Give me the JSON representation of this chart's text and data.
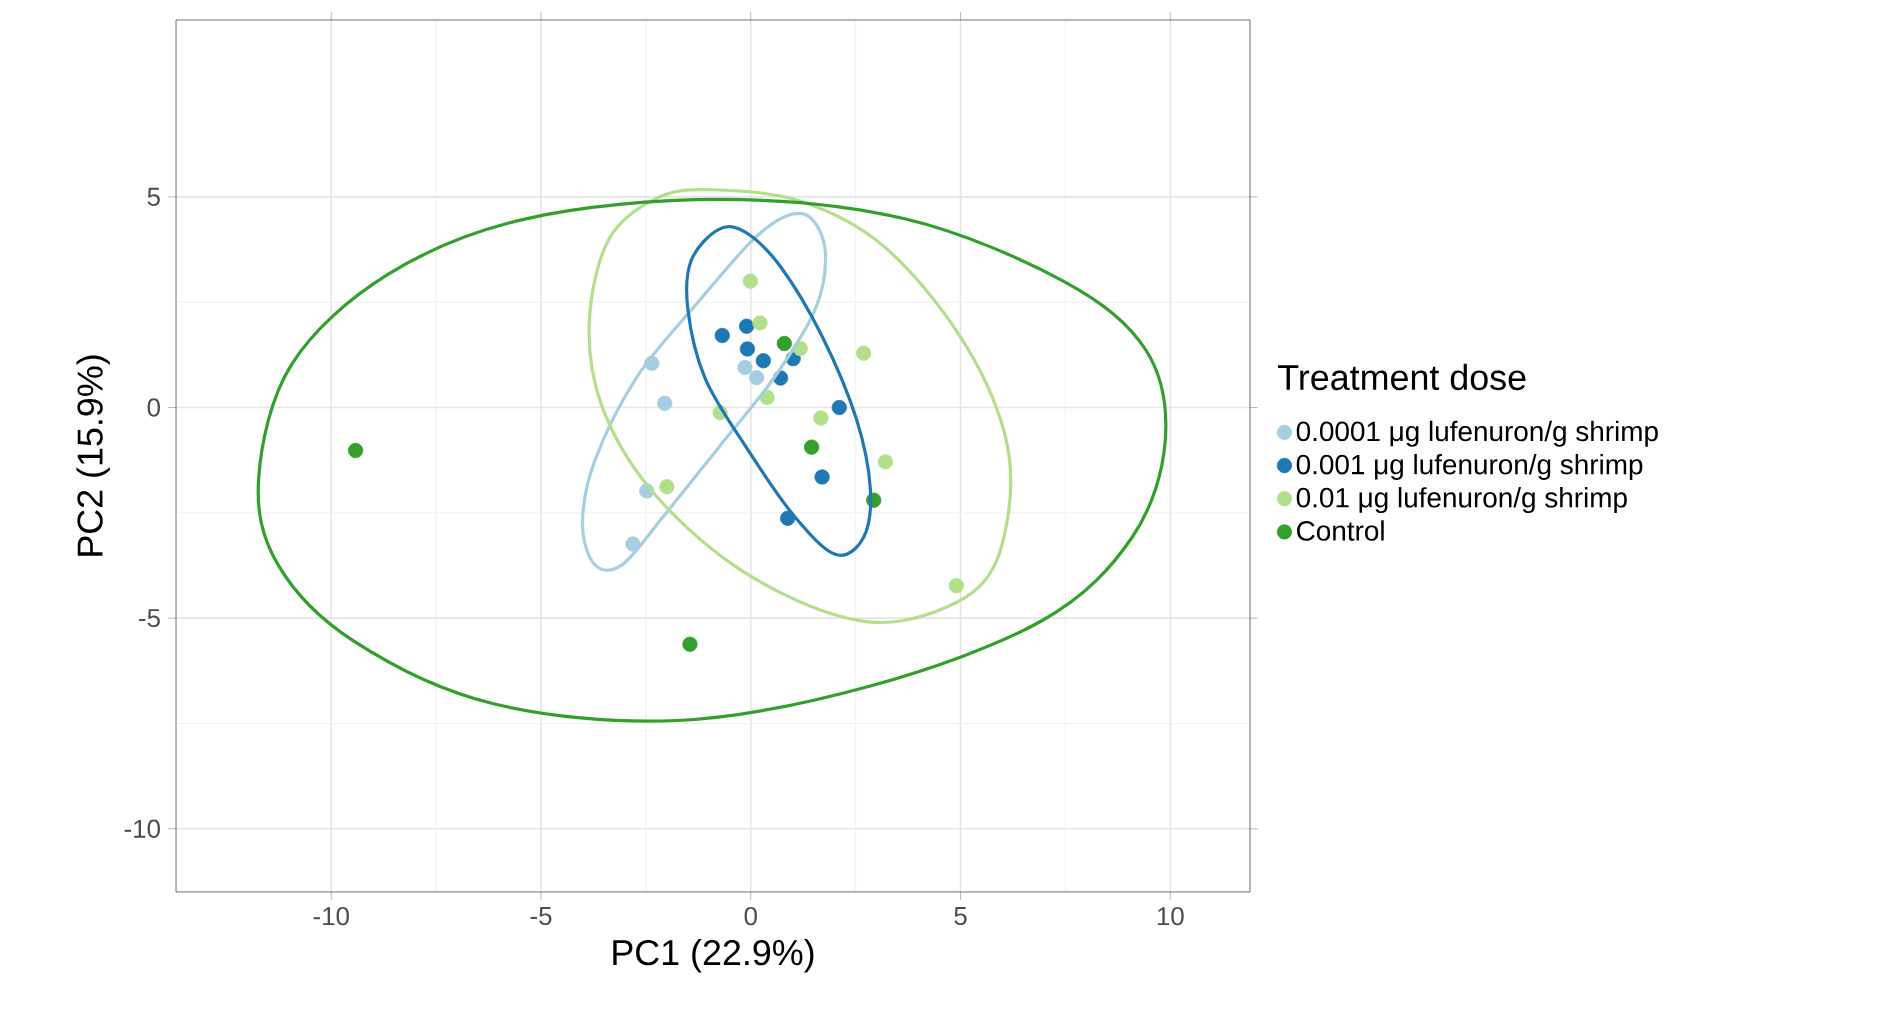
{
  "chart_data": {
    "type": "scatter",
    "xlabel": "PC1 (22.9%)",
    "ylabel": "PC2 (15.9%)",
    "legend_title": "Treatment dose",
    "xlim": [
      -13.7,
      11.9
    ],
    "ylim": [
      -11.5,
      9.2
    ],
    "xticks": [
      -10,
      -5,
      0,
      5,
      10
    ],
    "yticks": [
      -10,
      -5,
      0,
      5
    ],
    "grid": true,
    "legend": "right",
    "series": [
      {
        "name": "0.0001 μg lufenuron/g shrimp",
        "color": "#a6cee3",
        "x": [
          -2.36,
          -2.05,
          -2.48,
          -2.81,
          -0.14,
          0.14
        ],
        "values": [
          1.05,
          0.1,
          -1.98,
          -3.24,
          0.95,
          0.71
        ]
      },
      {
        "name": "0.001 μg lufenuron/g shrimp",
        "color": "#1f78b4",
        "x": [
          -0.68,
          -0.1,
          -0.08,
          0.3,
          0.71,
          1.01,
          2.11,
          1.7,
          0.88
        ],
        "values": [
          1.71,
          1.93,
          1.39,
          1.11,
          0.7,
          1.16,
          0.0,
          -1.65,
          -2.63
        ]
      },
      {
        "name": "0.01 μg lufenuron/g shrimp",
        "color": "#b2df8a",
        "x": [
          -0.01,
          0.22,
          1.18,
          2.69,
          0.39,
          -0.73,
          1.67,
          3.21,
          -2.0,
          4.9
        ],
        "values": [
          3.0,
          2.01,
          1.4,
          1.29,
          0.24,
          -0.12,
          -0.25,
          -1.29,
          -1.88,
          -4.23
        ]
      },
      {
        "name": "Control",
        "color": "#33a02c",
        "x": [
          -9.42,
          -1.45,
          1.45,
          2.93,
          0.8
        ],
        "values": [
          -1.02,
          -5.62,
          -0.94,
          -2.2,
          1.52
        ]
      }
    ]
  }
}
